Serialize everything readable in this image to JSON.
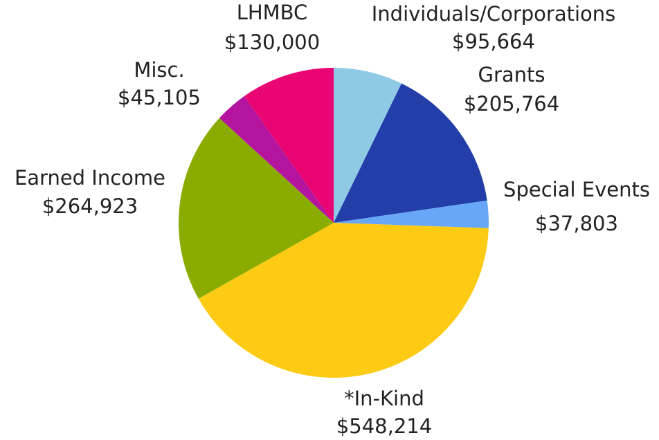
{
  "chart_data": {
    "type": "pie",
    "categories": [
      "Individuals/Corporations",
      "Grants",
      "Special Events",
      "*In-Kind",
      "Earned Income",
      "Misc.",
      "LHMBC"
    ],
    "values": [
      95664,
      205764,
      37803,
      548214,
      264923,
      45105,
      130000
    ],
    "value_labels": [
      "$95,664",
      "$205,764",
      "$37,803",
      "$548,214",
      "$264,923",
      "$45,105",
      "$130,000"
    ],
    "colors": [
      "#8ecae6",
      "#233ea8",
      "#66a8f7",
      "#fdca14",
      "#8aab00",
      "#b5159e",
      "#ea0574"
    ]
  }
}
